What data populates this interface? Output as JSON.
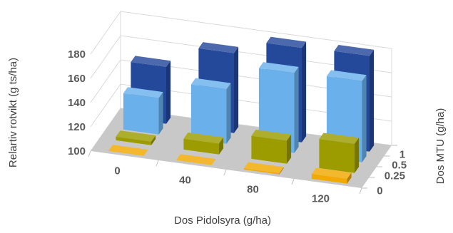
{
  "chart_data": {
    "type": "bar3d",
    "title": "",
    "xlabel": "Dos Pidolsyra (g/ha)",
    "ylabel": "Relartiv rotvikt (g ts/ha)",
    "zlabel": "Dos MTU (g/ha)",
    "x_categories": [
      "0",
      "40",
      "80",
      "120"
    ],
    "z_categories": [
      "0",
      "0.25",
      "0.5",
      "1"
    ],
    "y_ticks": [
      "100",
      "120",
      "140",
      "160",
      "180"
    ],
    "ylim": [
      100,
      180
    ],
    "gridlines": true,
    "series": [
      {
        "name": "0",
        "color": "#F2A900",
        "values": [
          100,
          100,
          101,
          104
        ]
      },
      {
        "name": "0.25",
        "color": "#9C9C00",
        "values": [
          103,
          109,
          119,
          124
        ]
      },
      {
        "name": "0.5",
        "color": "#6AB1EC",
        "values": [
          130,
          145,
          166,
          167
        ]
      },
      {
        "name": "1",
        "color": "#24489A",
        "values": [
          147,
          166,
          178,
          179
        ]
      }
    ]
  }
}
